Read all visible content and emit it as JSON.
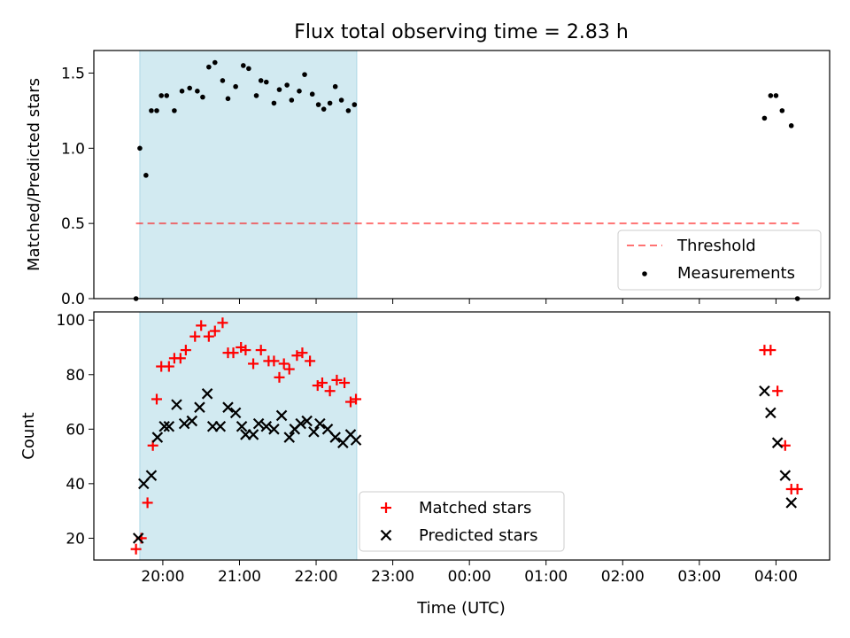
{
  "title": "Flux total observing time = 2.83 h",
  "xlabel": "Time (UTC)",
  "x_tick_labels": [
    "20:00",
    "21:00",
    "22:00",
    "23:00",
    "00:00",
    "01:00",
    "02:00",
    "03:00",
    "04:00"
  ],
  "x_tick_hours": [
    20,
    21,
    22,
    23,
    24,
    25,
    26,
    27,
    28
  ],
  "x_range_hours": [
    19.1,
    28.7
  ],
  "shaded_interval_hours": [
    19.7,
    22.53
  ],
  "colors": {
    "shade": "#add8e6",
    "threshold": "#ff0000",
    "matched": "#ff0000",
    "predicted": "#000000",
    "measurement": "#000000"
  },
  "chart_data": [
    {
      "type": "scatter",
      "ylabel": "Matched/Predicted stars",
      "ylim": [
        0,
        1.65
      ],
      "yticks": [
        0.0,
        0.5,
        1.0,
        1.5
      ],
      "ytick_labels": [
        "0.0",
        "0.5",
        "1.0",
        "1.5"
      ],
      "legend_placement": "lower right",
      "threshold": {
        "name": "Threshold",
        "value": 0.5,
        "x_range": [
          19.65,
          28.3
        ],
        "style": "dashed"
      },
      "series": [
        {
          "name": "Measurements",
          "marker": "dot",
          "x": [
            19.65,
            19.7,
            19.78,
            19.85,
            19.92,
            19.98,
            20.05,
            20.15,
            20.25,
            20.35,
            20.45,
            20.52,
            20.6,
            20.68,
            20.78,
            20.85,
            20.95,
            21.05,
            21.12,
            21.22,
            21.28,
            21.35,
            21.45,
            21.52,
            21.62,
            21.68,
            21.78,
            21.85,
            21.95,
            22.03,
            22.1,
            22.18,
            22.25,
            22.33,
            22.42,
            22.5,
            27.85,
            27.93,
            28.0,
            28.08,
            28.2,
            28.28
          ],
          "y": [
            0.0,
            1.0,
            0.82,
            1.25,
            1.25,
            1.35,
            1.35,
            1.25,
            1.38,
            1.4,
            1.38,
            1.34,
            1.54,
            1.57,
            1.45,
            1.33,
            1.41,
            1.55,
            1.53,
            1.35,
            1.45,
            1.44,
            1.3,
            1.39,
            1.42,
            1.32,
            1.38,
            1.49,
            1.36,
            1.29,
            1.26,
            1.3,
            1.41,
            1.32,
            1.25,
            1.29,
            1.2,
            1.35,
            1.35,
            1.25,
            1.15,
            0.0
          ]
        }
      ]
    },
    {
      "type": "scatter",
      "ylabel": "Count",
      "ylim": [
        12,
        103
      ],
      "yticks": [
        20,
        40,
        60,
        80,
        100
      ],
      "ytick_labels": [
        "20",
        "40",
        "60",
        "80",
        "100"
      ],
      "legend_placement": "lower center",
      "series": [
        {
          "name": "Matched stars",
          "marker": "plus",
          "x": [
            19.65,
            19.72,
            19.8,
            19.87,
            19.92,
            19.98,
            20.08,
            20.15,
            20.23,
            20.3,
            20.42,
            20.5,
            20.6,
            20.68,
            20.78,
            20.85,
            20.92,
            21.02,
            21.08,
            21.18,
            21.28,
            21.38,
            21.45,
            21.52,
            21.58,
            21.65,
            21.75,
            21.82,
            21.92,
            22.02,
            22.08,
            22.18,
            22.27,
            22.37,
            22.45,
            22.52,
            27.85,
            27.93,
            28.02,
            28.12,
            28.2,
            28.28
          ],
          "y": [
            16,
            20,
            33,
            54,
            71,
            83,
            83,
            86,
            86,
            89,
            94,
            98,
            94,
            96,
            99,
            88,
            88,
            90,
            89,
            84,
            89,
            85,
            85,
            79,
            84,
            82,
            87,
            88,
            85,
            76,
            77,
            74,
            78,
            77,
            70,
            71,
            89,
            89,
            74,
            54,
            38,
            38
          ]
        },
        {
          "name": "Predicted stars",
          "marker": "x",
          "x": [
            19.68,
            19.75,
            19.85,
            19.93,
            20.02,
            20.08,
            20.18,
            20.28,
            20.38,
            20.48,
            20.58,
            20.65,
            20.75,
            20.85,
            20.95,
            21.03,
            21.08,
            21.18,
            21.25,
            21.35,
            21.45,
            21.55,
            21.65,
            21.72,
            21.8,
            21.88,
            21.97,
            22.05,
            22.15,
            22.25,
            22.35,
            22.45,
            22.52,
            27.85,
            27.93,
            28.02,
            28.12,
            28.2
          ],
          "y": [
            20,
            40,
            43,
            57,
            61,
            61,
            69,
            62,
            63,
            68,
            73,
            61,
            61,
            68,
            66,
            61,
            58,
            58,
            62,
            61,
            60,
            65,
            57,
            60,
            62,
            63,
            59,
            62,
            60,
            57,
            55,
            58,
            56,
            74,
            66,
            55,
            43,
            33
          ]
        }
      ]
    }
  ]
}
